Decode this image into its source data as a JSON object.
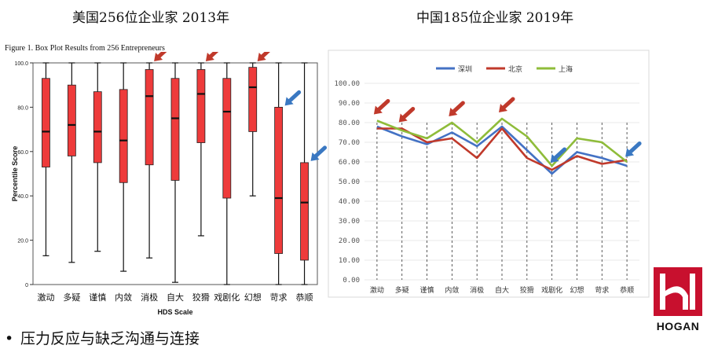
{
  "titles": {
    "left": "美国256位企业家 2013年",
    "right": "中国185位企业家 2019年"
  },
  "figure_caption": "Figure 1. Box Plot Results from 256 Entrepreneurs",
  "bullet_text": "压力反应与缺乏沟通与连接",
  "logo": {
    "text": "HOGAN",
    "color": "#c8102e"
  },
  "colors": {
    "box_fill": "#ee3b3b",
    "arrow_red": "#c0392b",
    "arrow_blue": "#3a78c2",
    "shenzhen": "#4472c4",
    "beijing": "#c0392b",
    "shanghai": "#8fbc3a"
  },
  "chart_data": [
    {
      "type": "box",
      "xlabel": "HDS Scale",
      "ylabel": "Percentile Score",
      "ylim": [
        0,
        100
      ],
      "yticks": [
        "0",
        "20.0",
        "40.0",
        "60.0",
        "80.0",
        "100.0"
      ],
      "categories": [
        "激动",
        "多疑",
        "谨慎",
        "内敛",
        "消极",
        "自大",
        "狡猾",
        "戏剧化",
        "幻想",
        "苛求",
        "恭顺"
      ],
      "boxes": [
        {
          "min": 13,
          "q1": 53,
          "median": 69,
          "q3": 93,
          "max": 100
        },
        {
          "min": 10,
          "q1": 58,
          "median": 72,
          "q3": 90,
          "max": 100
        },
        {
          "min": 15,
          "q1": 55,
          "median": 69,
          "q3": 87,
          "max": 100
        },
        {
          "min": 6,
          "q1": 46,
          "median": 65,
          "q3": 88,
          "max": 100
        },
        {
          "min": 12,
          "q1": 54,
          "median": 85,
          "q3": 97,
          "max": 100
        },
        {
          "min": 1,
          "q1": 47,
          "median": 75,
          "q3": 93,
          "max": 100
        },
        {
          "min": 22,
          "q1": 64,
          "median": 86,
          "q3": 97,
          "max": 100
        },
        {
          "min": 0,
          "q1": 39,
          "median": 78,
          "q3": 93,
          "max": 100
        },
        {
          "min": 40,
          "q1": 69,
          "median": 89,
          "q3": 98,
          "max": 100
        },
        {
          "min": 0,
          "q1": 14,
          "median": 39,
          "q3": 80,
          "max": 100
        },
        {
          "min": 0,
          "q1": 11,
          "median": 37,
          "q3": 55,
          "max": 100
        }
      ],
      "red_arrow_categories": [
        "消极",
        "狡猾",
        "幻想"
      ],
      "blue_arrow_categories": [
        "苛求",
        "恭顺"
      ]
    },
    {
      "type": "line",
      "ylim": [
        0,
        100
      ],
      "yticks": [
        "0.00",
        "10.00",
        "20.00",
        "30.00",
        "40.00",
        "50.00",
        "60.00",
        "70.00",
        "80.00",
        "90.00",
        "100.00"
      ],
      "categories": [
        "激动",
        "多疑",
        "谨慎",
        "内敛",
        "消极",
        "自大",
        "狡猾",
        "戏剧化",
        "幻想",
        "苛求",
        "恭顺"
      ],
      "series": [
        {
          "name": "深圳",
          "values": [
            78,
            73,
            69,
            75,
            68,
            78,
            66,
            54,
            65,
            62,
            58
          ]
        },
        {
          "name": "北京",
          "values": [
            77,
            77,
            70,
            72,
            62,
            77,
            62,
            56,
            63,
            59,
            61
          ]
        },
        {
          "name": "上海",
          "values": [
            81,
            76,
            72,
            80,
            70,
            82,
            73,
            58,
            72,
            70,
            60
          ]
        }
      ],
      "legend": "top",
      "red_arrow_categories": [
        "激动",
        "多疑",
        "内敛",
        "自大"
      ],
      "blue_arrow_categories": [
        "戏剧化",
        "恭顺"
      ]
    }
  ]
}
